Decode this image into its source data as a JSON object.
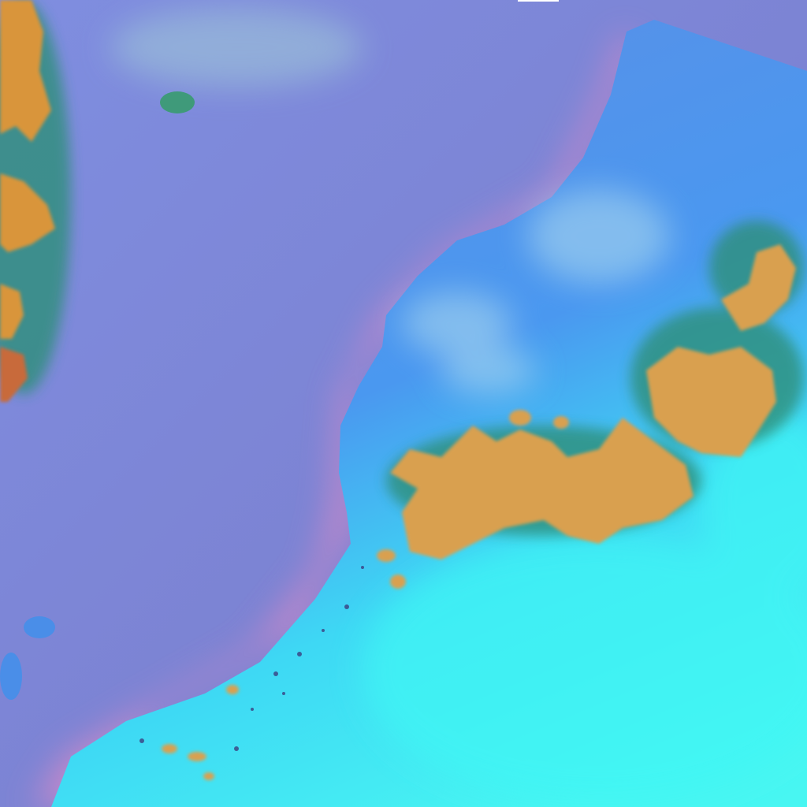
{
  "image": {
    "kind": "false-color satellite image",
    "colors": {
      "ocean": "#7d86d6",
      "ocean_coastal": "#d888c8",
      "land_blue": "#4f96ee",
      "desert_cyan": "#3ef2f4",
      "clouds_orange": "#d9a050",
      "cloud_edge": "#2f8f7a",
      "haze": "#9fd0e8"
    }
  }
}
